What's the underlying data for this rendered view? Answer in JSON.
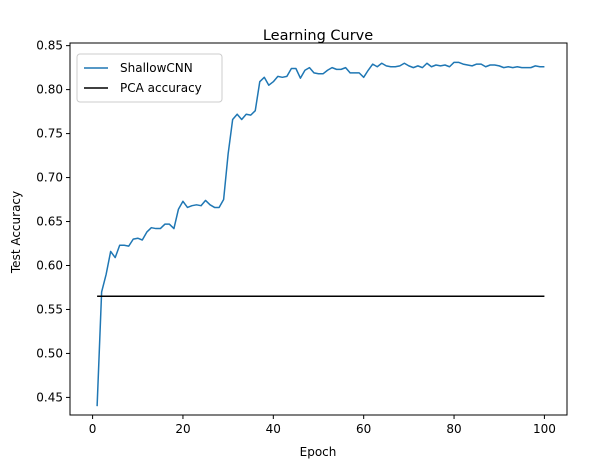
{
  "chart_data": {
    "type": "line",
    "title": "Learning Curve",
    "xlabel": "Epoch",
    "ylabel": "Test Accuracy",
    "xlim": [
      -5,
      105
    ],
    "ylim": [
      0.43,
      0.853
    ],
    "xticks": [
      0,
      20,
      40,
      60,
      80,
      100
    ],
    "yticks": [
      0.45,
      0.5,
      0.55,
      0.6,
      0.65,
      0.7,
      0.75,
      0.8,
      0.85
    ],
    "ytick_labels": [
      "0.45",
      "0.50",
      "0.55",
      "0.60",
      "0.65",
      "0.70",
      "0.75",
      "0.80",
      "0.85"
    ],
    "grid": false,
    "legend_position": "upper-left",
    "series": [
      {
        "name": "ShallowCNN",
        "color": "#1f77b4",
        "kind": "line",
        "x": [
          1,
          2,
          3,
          4,
          5,
          6,
          7,
          8,
          9,
          10,
          11,
          12,
          13,
          14,
          15,
          16,
          17,
          18,
          19,
          20,
          21,
          22,
          23,
          24,
          25,
          26,
          27,
          28,
          29,
          30,
          31,
          32,
          33,
          34,
          35,
          36,
          37,
          38,
          39,
          40,
          41,
          42,
          43,
          44,
          45,
          46,
          47,
          48,
          49,
          50,
          51,
          52,
          53,
          54,
          55,
          56,
          57,
          58,
          59,
          60,
          61,
          62,
          63,
          64,
          65,
          66,
          67,
          68,
          69,
          70,
          71,
          72,
          73,
          74,
          75,
          76,
          77,
          78,
          79,
          80,
          81,
          82,
          83,
          84,
          85,
          86,
          87,
          88,
          89,
          90,
          91,
          92,
          93,
          94,
          95,
          96,
          97,
          98,
          99,
          100
        ],
        "y": [
          0.44,
          0.57,
          0.59,
          0.616,
          0.609,
          0.623,
          0.623,
          0.622,
          0.63,
          0.631,
          0.629,
          0.638,
          0.643,
          0.642,
          0.642,
          0.647,
          0.647,
          0.642,
          0.664,
          0.673,
          0.666,
          0.668,
          0.669,
          0.668,
          0.674,
          0.669,
          0.666,
          0.666,
          0.675,
          0.727,
          0.766,
          0.772,
          0.766,
          0.772,
          0.771,
          0.776,
          0.809,
          0.814,
          0.805,
          0.809,
          0.815,
          0.814,
          0.815,
          0.824,
          0.824,
          0.813,
          0.822,
          0.825,
          0.819,
          0.818,
          0.818,
          0.822,
          0.825,
          0.823,
          0.823,
          0.825,
          0.819,
          0.819,
          0.819,
          0.814,
          0.822,
          0.829,
          0.826,
          0.83,
          0.827,
          0.826,
          0.826,
          0.827,
          0.83,
          0.827,
          0.825,
          0.827,
          0.825,
          0.83,
          0.826,
          0.828,
          0.827,
          0.828,
          0.826,
          0.831,
          0.831,
          0.829,
          0.828,
          0.827,
          0.829,
          0.829,
          0.826,
          0.828,
          0.828,
          0.827,
          0.825,
          0.826,
          0.825,
          0.826,
          0.825,
          0.825,
          0.825,
          0.827,
          0.826,
          0.826
        ]
      },
      {
        "name": "PCA accuracy",
        "color": "#000000",
        "kind": "hline",
        "x": [
          1,
          100
        ],
        "y": [
          0.565,
          0.565
        ]
      }
    ]
  }
}
